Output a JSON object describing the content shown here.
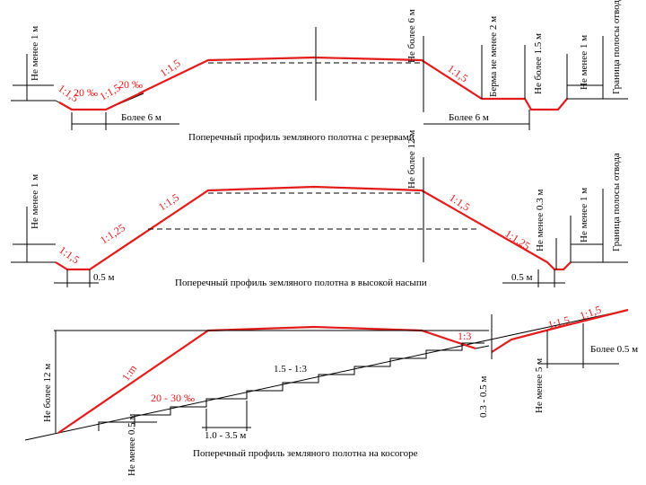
{
  "diagrams": [
    {
      "caption": "Поперечный профиль земляного полотна с резервами",
      "labels": [
        "Не менее 1 м",
        "1:1,5",
        "20 ‰",
        "1:1,5",
        "20 ‰",
        "1:1,5",
        "Не более 6 м",
        "1:1,5",
        "Берма не менее 2 м",
        "Не более 1.5 м",
        "Не менее 1 м",
        "Граница полосы отвода",
        "Более 6 м",
        "Более 6 м"
      ]
    },
    {
      "caption": "Поперечный профиль земляного полотна в высокой насыпи",
      "labels": [
        "Не менее 1 м",
        "1:1,5",
        "1:1,25",
        "1:1,5",
        "Не более 12 м",
        "1:1,5",
        "1:1,25",
        "Не менее 0.3 м",
        "Не менее 1 м",
        "Граница полосы отвода",
        "0.5 м",
        "0.5 м"
      ]
    },
    {
      "caption": "Поперечный профиль земляного полотна на косогоре",
      "labels": [
        "Не более 12 м",
        "1:m",
        "20 - 30 ‰",
        "1.5 - 1:3",
        "1:3",
        "1:1,5",
        "1:1,5",
        "Более 0.5 м",
        "0.3 - 0.5 м",
        "Не менее 5 м",
        "Не менее 0.5 м",
        "1.0 - 3.5 м"
      ]
    }
  ]
}
